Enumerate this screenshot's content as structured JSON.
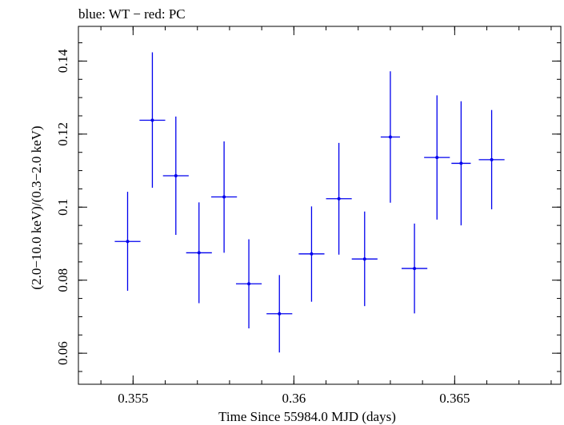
{
  "chart_data": {
    "type": "scatter",
    "title": "blue: WT − red: PC",
    "xlabel": "Time Since 55984.0 MJD (days)",
    "ylabel": "(2.0−10.0 keV)/(0.3−2.0 keV)",
    "xlim": [
      0.3533,
      0.3683
    ],
    "ylim": [
      0.0515,
      0.1495
    ],
    "x_ticks": [
      {
        "value": 0.355,
        "label": "0.355"
      },
      {
        "value": 0.36,
        "label": "0.36"
      },
      {
        "value": 0.365,
        "label": "0.365"
      }
    ],
    "y_ticks": [
      {
        "value": 0.06,
        "label": "0.06"
      },
      {
        "value": 0.08,
        "label": "0.08"
      },
      {
        "value": 0.1,
        "label": "0.1"
      },
      {
        "value": 0.12,
        "label": "0.12"
      },
      {
        "value": 0.14,
        "label": "0.14"
      }
    ],
    "x_minor_step": 0.001,
    "y_minor_step": 0.005,
    "grid": false,
    "series": [
      {
        "color": "#0000ee",
        "points": [
          {
            "x": 0.35483,
            "xerr": 0.0004,
            "y": 0.0906,
            "yerr_low": 0.0135,
            "yerr_high": 0.0136
          },
          {
            "x": 0.3556,
            "xerr": 0.0004,
            "y": 0.1238,
            "yerr_low": 0.0185,
            "yerr_high": 0.0186
          },
          {
            "x": 0.35633,
            "xerr": 0.0004,
            "y": 0.1086,
            "yerr_low": 0.0162,
            "yerr_high": 0.0162
          },
          {
            "x": 0.35705,
            "xerr": 0.0004,
            "y": 0.0875,
            "yerr_low": 0.0138,
            "yerr_high": 0.0138
          },
          {
            "x": 0.35783,
            "xerr": 0.0004,
            "y": 0.1028,
            "yerr_low": 0.0153,
            "yerr_high": 0.0152
          },
          {
            "x": 0.3586,
            "xerr": 0.0004,
            "y": 0.079,
            "yerr_low": 0.0122,
            "yerr_high": 0.0122
          },
          {
            "x": 0.35955,
            "xerr": 0.0004,
            "y": 0.0708,
            "yerr_low": 0.0106,
            "yerr_high": 0.0106
          },
          {
            "x": 0.36055,
            "xerr": 0.0004,
            "y": 0.0872,
            "yerr_low": 0.0131,
            "yerr_high": 0.013
          },
          {
            "x": 0.3614,
            "xerr": 0.0004,
            "y": 0.1023,
            "yerr_low": 0.0153,
            "yerr_high": 0.0153
          },
          {
            "x": 0.3622,
            "xerr": 0.0004,
            "y": 0.0858,
            "yerr_low": 0.0129,
            "yerr_high": 0.013
          },
          {
            "x": 0.363,
            "xerr": 0.0003,
            "y": 0.1192,
            "yerr_low": 0.018,
            "yerr_high": 0.018
          },
          {
            "x": 0.36375,
            "xerr": 0.0004,
            "y": 0.0832,
            "yerr_low": 0.0123,
            "yerr_high": 0.0123
          },
          {
            "x": 0.36445,
            "xerr": 0.0004,
            "y": 0.1136,
            "yerr_low": 0.017,
            "yerr_high": 0.017
          },
          {
            "x": 0.3652,
            "xerr": 0.0003,
            "y": 0.112,
            "yerr_low": 0.017,
            "yerr_high": 0.017
          },
          {
            "x": 0.36615,
            "xerr": 0.0004,
            "y": 0.113,
            "yerr_low": 0.0136,
            "yerr_high": 0.0136
          }
        ]
      }
    ]
  }
}
